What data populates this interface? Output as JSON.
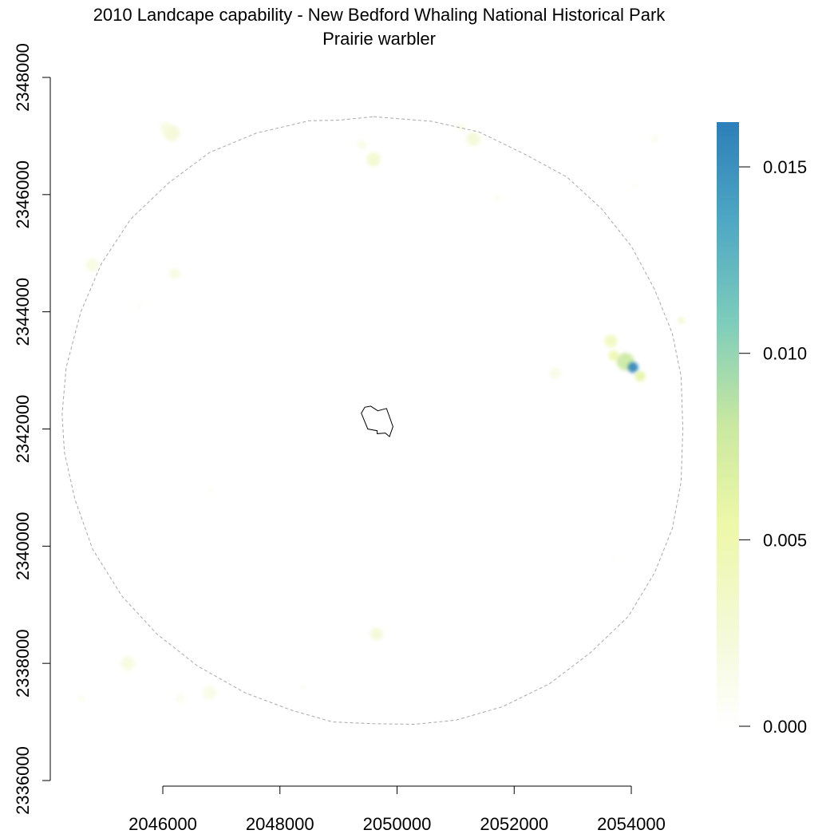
{
  "chart_data": {
    "type": "heatmap",
    "title": "2010 Landcape capability - New Bedford Whaling National Historical Park",
    "subtitle": "Prairie warbler",
    "xlabel": "",
    "ylabel": "",
    "xlim": [
      2044200,
      2055000
    ],
    "ylim": [
      2336000,
      2348000
    ],
    "x_ticks": [
      2046000,
      2048000,
      2050000,
      2052000,
      2054000
    ],
    "x_tick_labels": [
      "2046000",
      "2048000",
      "2050000",
      "2052000",
      "2054000"
    ],
    "y_ticks": [
      2336000,
      2338000,
      2340000,
      2342000,
      2344000,
      2346000,
      2348000
    ],
    "y_tick_labels": [
      "2336000",
      "2338000",
      "2340000",
      "2342000",
      "2344000",
      "2346000",
      "2348000"
    ],
    "colorbar": {
      "range": [
        0,
        0.0162
      ],
      "ticks": [
        0,
        0.005,
        0.01,
        0.015
      ],
      "tick_labels": [
        "0.000",
        "0.005",
        "0.010",
        "0.015"
      ],
      "colors": [
        "#ffffff",
        "#f3f9d4",
        "#eef8a8",
        "#c9e8a0",
        "#7ecdbb",
        "#4fa8c4",
        "#2c7fb8"
      ]
    },
    "buffer_boundary": [
      [
        2049600,
        2347330
      ],
      [
        2050600,
        2347250
      ],
      [
        2051400,
        2347070
      ],
      [
        2052200,
        2346680
      ],
      [
        2052900,
        2346300
      ],
      [
        2053500,
        2345750
      ],
      [
        2054000,
        2345120
      ],
      [
        2054400,
        2344380
      ],
      [
        2054700,
        2343630
      ],
      [
        2054850,
        2342900
      ],
      [
        2054880,
        2342000
      ],
      [
        2054850,
        2341100
      ],
      [
        2054700,
        2340300
      ],
      [
        2054400,
        2339550
      ],
      [
        2053950,
        2338800
      ],
      [
        2053300,
        2338180
      ],
      [
        2052600,
        2337650
      ],
      [
        2051800,
        2337260
      ],
      [
        2051000,
        2337030
      ],
      [
        2050300,
        2336960
      ],
      [
        2049600,
        2336970
      ],
      [
        2048900,
        2337000
      ],
      [
        2048200,
        2337200
      ],
      [
        2047400,
        2337500
      ],
      [
        2046600,
        2337950
      ],
      [
        2045900,
        2338500
      ],
      [
        2045300,
        2339150
      ],
      [
        2044800,
        2339950
      ],
      [
        2044500,
        2340800
      ],
      [
        2044320,
        2341600
      ],
      [
        2044280,
        2342250
      ],
      [
        2044350,
        2343050
      ],
      [
        2044600,
        2344000
      ],
      [
        2044950,
        2344820
      ],
      [
        2045450,
        2345580
      ],
      [
        2046100,
        2346200
      ],
      [
        2046800,
        2346720
      ],
      [
        2047600,
        2347050
      ],
      [
        2048500,
        2347260
      ],
      [
        2049000,
        2347270
      ]
    ],
    "park_boundary": [
      [
        2049550,
        2342390
      ],
      [
        2049670,
        2342310
      ],
      [
        2049820,
        2342350
      ],
      [
        2049930,
        2342040
      ],
      [
        2049870,
        2341870
      ],
      [
        2049800,
        2341930
      ],
      [
        2049660,
        2341920
      ],
      [
        2049660,
        2341970
      ],
      [
        2049500,
        2342000
      ],
      [
        2049390,
        2342270
      ],
      [
        2049450,
        2342370
      ]
    ],
    "patches": [
      {
        "x": 2046150,
        "y": 2347050,
        "r": 140,
        "value": 0.0025
      },
      {
        "x": 2046050,
        "y": 2347150,
        "r": 90,
        "value": 0.002
      },
      {
        "x": 2049600,
        "y": 2346600,
        "r": 120,
        "value": 0.003
      },
      {
        "x": 2049400,
        "y": 2346850,
        "r": 80,
        "value": 0.0015
      },
      {
        "x": 2051300,
        "y": 2346950,
        "r": 120,
        "value": 0.0025
      },
      {
        "x": 2051100,
        "y": 2347150,
        "r": 70,
        "value": 0.0015
      },
      {
        "x": 2054400,
        "y": 2346950,
        "r": 70,
        "value": 0.001
      },
      {
        "x": 2051700,
        "y": 2345950,
        "r": 50,
        "value": 0.001
      },
      {
        "x": 2054050,
        "y": 2346150,
        "r": 40,
        "value": 0.001
      },
      {
        "x": 2044800,
        "y": 2344800,
        "r": 110,
        "value": 0.002
      },
      {
        "x": 2046200,
        "y": 2344650,
        "r": 90,
        "value": 0.002
      },
      {
        "x": 2053650,
        "y": 2343500,
        "r": 110,
        "value": 0.004
      },
      {
        "x": 2053700,
        "y": 2343250,
        "r": 90,
        "value": 0.005
      },
      {
        "x": 2053900,
        "y": 2343150,
        "r": 150,
        "value": 0.008
      },
      {
        "x": 2054030,
        "y": 2343050,
        "r": 90,
        "value": 0.016
      },
      {
        "x": 2054150,
        "y": 2342900,
        "r": 90,
        "value": 0.006
      },
      {
        "x": 2054850,
        "y": 2343850,
        "r": 60,
        "value": 0.003
      },
      {
        "x": 2052700,
        "y": 2342950,
        "r": 100,
        "value": 0.0015
      },
      {
        "x": 2049650,
        "y": 2338500,
        "r": 110,
        "value": 0.0025
      },
      {
        "x": 2045400,
        "y": 2338000,
        "r": 120,
        "value": 0.002
      },
      {
        "x": 2046800,
        "y": 2337500,
        "r": 120,
        "value": 0.0015
      },
      {
        "x": 2046300,
        "y": 2337400,
        "r": 80,
        "value": 0.001
      },
      {
        "x": 2044600,
        "y": 2337400,
        "r": 60,
        "value": 0.001
      },
      {
        "x": 2053700,
        "y": 2339800,
        "r": 30,
        "value": 0.001
      },
      {
        "x": 2046800,
        "y": 2340950,
        "r": 40,
        "value": 0.0008
      },
      {
        "x": 2048400,
        "y": 2337600,
        "r": 50,
        "value": 0.0008
      },
      {
        "x": 2045600,
        "y": 2344100,
        "r": 40,
        "value": 0.0008
      }
    ]
  }
}
